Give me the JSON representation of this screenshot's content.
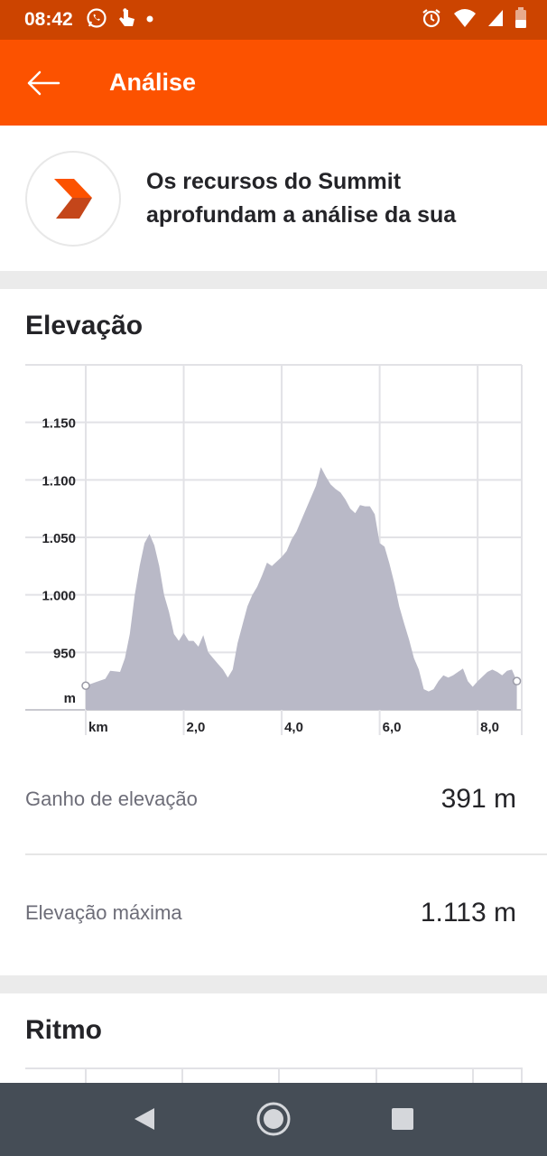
{
  "status_bar": {
    "time": "08:42",
    "left_icons": [
      "whatsapp-icon",
      "touch-icon",
      "dot-icon"
    ],
    "right_icons": [
      "alarm-icon",
      "wifi-icon",
      "signal-icon",
      "battery-icon"
    ]
  },
  "app_bar": {
    "title": "Análise",
    "back_icon": "arrow-left-icon",
    "color": "#fc5200"
  },
  "promo": {
    "text": "Os recursos do Summit aprofundam a análise da sua",
    "icon": "summit-chevron-icon"
  },
  "elevation": {
    "title": "Elevação",
    "stats": [
      {
        "label": "Ganho de elevação",
        "value": "391 m"
      },
      {
        "label": "Elevação máxima",
        "value": "1.113 m"
      }
    ]
  },
  "pace": {
    "title": "Ritmo"
  },
  "chart_data": {
    "type": "area",
    "title": "",
    "xlabel": "km",
    "ylabel": "m",
    "x_ticks": [
      "2,0",
      "4,0",
      "6,0",
      "8,0"
    ],
    "y_ticks": [
      "950",
      "1.000",
      "1.050",
      "1.100",
      "1.150"
    ],
    "xlim": [
      0,
      8.9
    ],
    "ylim": [
      900,
      1200
    ],
    "fill_color": "#b9b9c7",
    "grid": true,
    "x": [
      0,
      0.2,
      0.4,
      0.5,
      0.7,
      0.8,
      0.9,
      1.0,
      1.1,
      1.2,
      1.3,
      1.4,
      1.5,
      1.6,
      1.7,
      1.8,
      1.9,
      2.0,
      2.1,
      2.2,
      2.3,
      2.4,
      2.5,
      2.6,
      2.7,
      2.8,
      2.9,
      3.0,
      3.1,
      3.3,
      3.4,
      3.5,
      3.6,
      3.7,
      3.8,
      4.0,
      4.1,
      4.2,
      4.3,
      4.5,
      4.7,
      4.8,
      4.9,
      5.0,
      5.1,
      5.2,
      5.3,
      5.4,
      5.5,
      5.6,
      5.7,
      5.8,
      5.9,
      6.0,
      6.1,
      6.2,
      6.3,
      6.4,
      6.5,
      6.6,
      6.7,
      6.8,
      6.9,
      7.0,
      7.1,
      7.2,
      7.3,
      7.4,
      7.5,
      7.7,
      7.8,
      7.9,
      8.0,
      8.1,
      8.2,
      8.3,
      8.4,
      8.5,
      8.6,
      8.7,
      8.8
    ],
    "values": [
      921,
      924,
      927,
      934,
      933,
      945,
      966,
      1000,
      1025,
      1045,
      1053,
      1043,
      1025,
      1000,
      985,
      966,
      960,
      967,
      960,
      960,
      955,
      965,
      950,
      945,
      940,
      935,
      928,
      935,
      958,
      990,
      1000,
      1007,
      1017,
      1028,
      1025,
      1033,
      1038,
      1048,
      1055,
      1075,
      1095,
      1111,
      1103,
      1096,
      1092,
      1089,
      1083,
      1075,
      1071,
      1078,
      1077,
      1077,
      1070,
      1045,
      1042,
      1027,
      1010,
      990,
      975,
      961,
      945,
      935,
      918,
      916,
      918,
      925,
      930,
      928,
      930,
      936,
      925,
      920,
      925,
      929,
      933,
      935,
      933,
      930,
      934,
      935,
      925
    ]
  }
}
